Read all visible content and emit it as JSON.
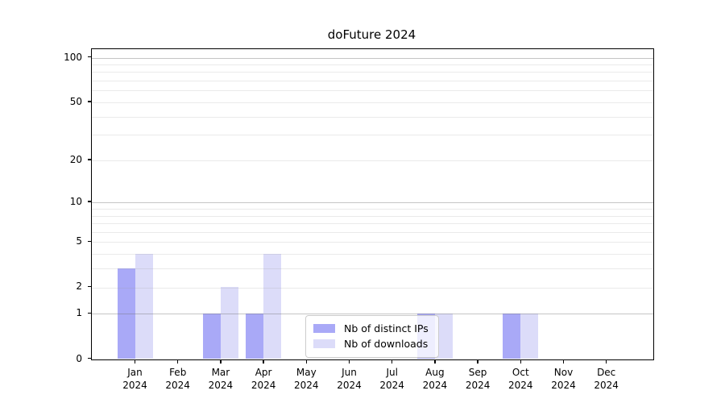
{
  "chart_data": {
    "type": "bar",
    "title": "doFuture 2024",
    "categories": [
      "Jan",
      "Feb",
      "Mar",
      "Apr",
      "May",
      "Jun",
      "Jul",
      "Aug",
      "Sep",
      "Oct",
      "Nov",
      "Dec"
    ],
    "x_tick_year": "2024",
    "series": [
      {
        "name": "Nb of distinct IPs",
        "color": "#a9a9f7",
        "values": [
          3,
          0,
          1,
          1,
          0,
          0,
          0,
          1,
          0,
          1,
          0,
          0
        ]
      },
      {
        "name": "Nb of downloads",
        "color": "#dcdcf9",
        "values": [
          4,
          0,
          2,
          4,
          0,
          0,
          0,
          1,
          0,
          1,
          0,
          0
        ]
      }
    ],
    "yscale": "log1p",
    "ylim": [
      0,
      114
    ],
    "y_tick_labels": [
      100,
      50,
      20,
      10,
      5,
      2,
      1,
      0
    ],
    "y_major_gridlines": [
      100,
      10,
      1
    ],
    "y_minor_gridlines": [
      90,
      80,
      70,
      60,
      50,
      40,
      30,
      20,
      9,
      8,
      7,
      6,
      5,
      4,
      3,
      2
    ],
    "grid": true,
    "legend": {
      "position": "lower-center",
      "items": [
        {
          "label": "Nb of distinct IPs",
          "color": "#a9a9f7"
        },
        {
          "label": "Nb of downloads",
          "color": "#dcdcf9"
        }
      ]
    }
  },
  "colors": {
    "background": "#ffffff",
    "axis": "#000000",
    "grid_major": "#bdbdbd",
    "grid_minor": "#eaeaea",
    "legend_border": "#cccccc"
  }
}
